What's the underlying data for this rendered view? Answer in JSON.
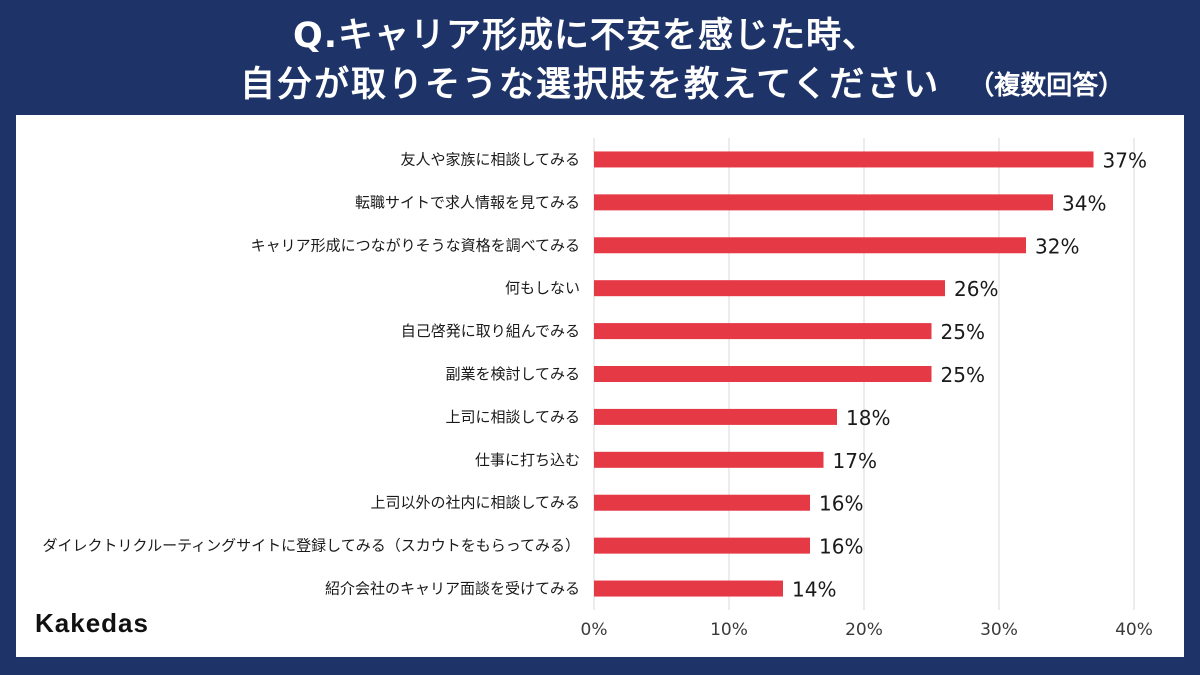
{
  "colors": {
    "background": "#1e3368",
    "panel": "#ffffff",
    "bar": "#e63946",
    "grid": "#d9d9d9"
  },
  "logo": "Kakedas",
  "chart_data": {
    "type": "bar",
    "title": [
      "Q.キャリア形成に不安を感じた時、",
      "自分が取りそうな選択肢を教えてください"
    ],
    "subtitle": "（複数回答）",
    "categories": [
      "友人や家族に相談してみる",
      "転職サイトで求人情報を見てみる",
      "キャリア形成につながりそうな資格を調べてみる",
      "何もしない",
      "自己啓発に取り組んでみる",
      "副業を検討してみる",
      "上司に相談してみる",
      "仕事に打ち込む",
      "上司以外の社内に相談してみる",
      "ダイレクトリクルーティングサイトに登録してみる（スカウトをもらってみる）",
      "紹介会社のキャリア面談を受けてみる"
    ],
    "values": [
      37,
      34,
      32,
      26,
      25,
      25,
      18,
      17,
      16,
      16,
      14
    ],
    "unit": "%",
    "xlabel": "",
    "ylabel": "",
    "xlim": [
      0,
      40
    ],
    "xticks": [
      0,
      10,
      20,
      30,
      40
    ],
    "grid": true
  }
}
